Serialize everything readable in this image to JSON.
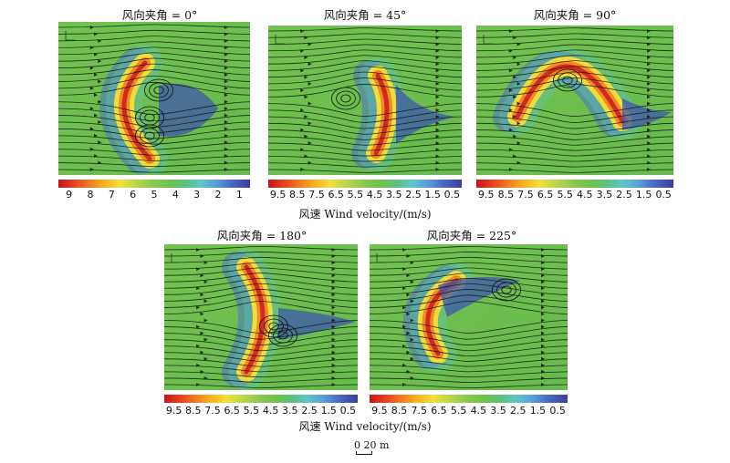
{
  "panels": [
    {
      "title": "风向夹角 = 0°",
      "angle": 0
    },
    {
      "title": "风向夹角 = 45°",
      "angle": 45
    },
    {
      "title": "风向夹角 = 90°",
      "angle": 90
    },
    {
      "title": "风向夹角 = 180°",
      "angle": 180
    },
    {
      "title": "风向夹角 = 225°",
      "angle": 225
    }
  ],
  "colorbars": [
    {
      "ticks": [
        "9",
        "8",
        "7",
        "6",
        "5",
        "4",
        "3",
        "2",
        "1"
      ]
    },
    {
      "ticks": [
        "9.5",
        "8.5",
        "7.5",
        "6.5",
        "5.5",
        "4.5",
        "3.5",
        "2.5",
        "1.5",
        "0.5"
      ]
    },
    {
      "ticks": [
        "9.5",
        "8.5",
        "7.5",
        "6.5",
        "5.5",
        "4.5",
        "3.5",
        "2.5",
        "1.5",
        "0.5"
      ]
    },
    {
      "ticks": [
        "9.5",
        "8.5",
        "7.5",
        "6.5",
        "5.5",
        "4.5",
        "3.5",
        "2.5",
        "1.5",
        "0.5"
      ]
    },
    {
      "ticks": [
        "9.5",
        "8.5",
        "7.5",
        "6.5",
        "5.5",
        "4.5",
        "3.5",
        "2.5",
        "1.5",
        "0.5"
      ]
    }
  ],
  "colorbar_label": "风速 Wind velocity/(m/s)",
  "colors": {
    "field": "#6fc14e",
    "high": "#d7261e",
    "low": "#3a4fa8"
  },
  "scale_bar": {
    "label": "0  20 m"
  }
}
